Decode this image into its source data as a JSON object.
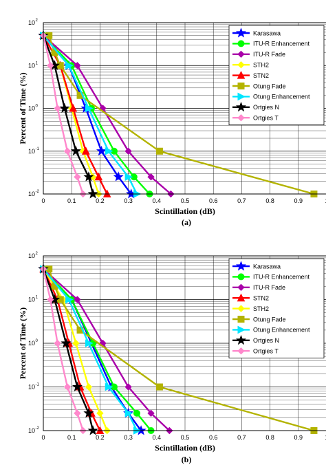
{
  "chart_data": [
    {
      "type": "line",
      "caption": "(a)",
      "xlabel": "Scintillation (dB)",
      "ylabel": "Percent of Time (%)",
      "xlim": [
        0,
        1
      ],
      "ylim": [
        0.01,
        100
      ],
      "yscale": "log",
      "grid": true,
      "legend_position": "top-right",
      "x_ticks": [
        "0",
        "0.1",
        "0.2",
        "0.3",
        "0.4",
        "0.5",
        "0.6",
        "0.7",
        "0.8",
        "0.9",
        "1"
      ],
      "y_ticks": [
        {
          "base": "10",
          "exp": "-2"
        },
        {
          "base": "10",
          "exp": "-1"
        },
        {
          "base": "10",
          "exp": "0"
        },
        {
          "base": "10",
          "exp": "1"
        },
        {
          "base": "10",
          "exp": "2"
        }
      ],
      "series": [
        {
          "name": "Karasawa",
          "color": "#0000ff",
          "marker": "star",
          "x": [
            0,
            0.09,
            0.15,
            0.205,
            0.265,
            0.31
          ],
          "y": [
            50,
            10,
            1,
            0.1,
            0.025,
            0.01
          ]
        },
        {
          "name": "ITU-R Enhancement",
          "color": "#00ff00",
          "marker": "circle",
          "x": [
            0,
            0.1,
            0.17,
            0.25,
            0.32,
            0.375
          ],
          "y": [
            50,
            10,
            1,
            0.1,
            0.025,
            0.01
          ]
        },
        {
          "name": "ITU-R Fade",
          "color": "#aa00aa",
          "marker": "diamond",
          "x": [
            0,
            0.12,
            0.21,
            0.3,
            0.38,
            0.45
          ],
          "y": [
            50,
            10,
            1,
            0.1,
            0.025,
            0.01
          ]
        },
        {
          "name": "STH2",
          "color": "#ffff00",
          "marker": "diamond",
          "x": [
            0,
            0.06,
            0.1,
            0.14,
            0.175,
            0.195
          ],
          "y": [
            50,
            10,
            1,
            0.1,
            0.025,
            0.01
          ]
        },
        {
          "name": "STN2",
          "color": "#ff0000",
          "marker": "triangle",
          "x": [
            0,
            0.06,
            0.105,
            0.15,
            0.195,
            0.225
          ],
          "y": [
            50,
            10,
            1,
            0.1,
            0.025,
            0.01
          ]
        },
        {
          "name": "Otung Fade",
          "color": "#b3b300",
          "marker": "square",
          "x": [
            0.02,
            0.04,
            0.06,
            0.13,
            0.41,
            0.955
          ],
          "y": [
            50,
            20,
            10,
            2,
            0.1,
            0.01
          ]
        },
        {
          "name": "Otung Enhancement",
          "color": "#00e5ff",
          "marker": "triangle-right",
          "x": [
            0,
            0.09,
            0.16,
            0.23,
            0.3,
            0.33
          ],
          "y": [
            50,
            10,
            1,
            0.1,
            0.025,
            0.01
          ]
        },
        {
          "name": "Ortgies N",
          "color": "#000000",
          "marker": "star",
          "x": [
            0,
            0.04,
            0.075,
            0.115,
            0.16,
            0.175
          ],
          "y": [
            50,
            10,
            1,
            0.1,
            0.025,
            0.01
          ]
        },
        {
          "name": "Ortgies T",
          "color": "#ff88cc",
          "marker": "diamond",
          "x": [
            0,
            0.025,
            0.05,
            0.085,
            0.12,
            0.14
          ],
          "y": [
            50,
            10,
            1,
            0.1,
            0.025,
            0.01
          ]
        }
      ]
    },
    {
      "type": "line",
      "caption": "(b)",
      "xlabel": "Scintillation (dB)",
      "ylabel": "Percent of Time (%)",
      "xlim": [
        0,
        1
      ],
      "ylim": [
        0.01,
        100
      ],
      "yscale": "log",
      "grid": true,
      "legend_position": "top-right",
      "x_ticks": [
        "0",
        "0.1",
        "0.2",
        "0.3",
        "0.4",
        "0.5",
        "0.6",
        "0.7",
        "0.8",
        "0.9",
        "1"
      ],
      "y_ticks": [
        {
          "base": "10",
          "exp": "-2"
        },
        {
          "base": "10",
          "exp": "-1"
        },
        {
          "base": "10",
          "exp": "0"
        },
        {
          "base": "10",
          "exp": "1"
        },
        {
          "base": "10",
          "exp": "2"
        }
      ],
      "series": [
        {
          "name": "Karasawa",
          "color": "#0000ff",
          "marker": "star",
          "x": [
            0,
            0.1,
            0.17,
            0.24,
            0.3,
            0.345
          ],
          "y": [
            50,
            10,
            1,
            0.1,
            0.025,
            0.01
          ]
        },
        {
          "name": "ITU-R Enhancement",
          "color": "#00ff00",
          "marker": "circle",
          "x": [
            0,
            0.1,
            0.175,
            0.25,
            0.33,
            0.38
          ],
          "y": [
            50,
            10,
            1,
            0.1,
            0.025,
            0.01
          ]
        },
        {
          "name": "ITU-R Fade",
          "color": "#aa00aa",
          "marker": "diamond",
          "x": [
            0,
            0.12,
            0.21,
            0.3,
            0.38,
            0.445
          ],
          "y": [
            50,
            10,
            1,
            0.1,
            0.025,
            0.01
          ]
        },
        {
          "name": "STN2",
          "color": "#ff0000",
          "marker": "triangle",
          "x": [
            0,
            0.05,
            0.09,
            0.13,
            0.17,
            0.2
          ],
          "y": [
            50,
            10,
            1,
            0.1,
            0.025,
            0.01
          ]
        },
        {
          "name": "STH2",
          "color": "#ffff00",
          "marker": "diamond",
          "x": [
            0,
            0.07,
            0.115,
            0.16,
            0.2,
            0.225
          ],
          "y": [
            50,
            10,
            1,
            0.1,
            0.025,
            0.01
          ]
        },
        {
          "name": "Otung Fade",
          "color": "#b3b300",
          "marker": "square",
          "x": [
            0.02,
            0.04,
            0.06,
            0.13,
            0.41,
            0.955
          ],
          "y": [
            50,
            20,
            10,
            2,
            0.1,
            0.01
          ]
        },
        {
          "name": "Otung Enhancement",
          "color": "#00e5ff",
          "marker": "triangle-right",
          "x": [
            0,
            0.09,
            0.16,
            0.23,
            0.3,
            0.33
          ],
          "y": [
            50,
            10,
            1,
            0.1,
            0.025,
            0.01
          ]
        },
        {
          "name": "Ortgies N",
          "color": "#000000",
          "marker": "star",
          "x": [
            0,
            0.04,
            0.08,
            0.12,
            0.16,
            0.175
          ],
          "y": [
            50,
            10,
            1,
            0.1,
            0.025,
            0.01
          ]
        },
        {
          "name": "Ortgies T",
          "color": "#ff88cc",
          "marker": "diamond",
          "x": [
            0,
            0.025,
            0.05,
            0.085,
            0.12,
            0.14
          ],
          "y": [
            50,
            10,
            1,
            0.1,
            0.025,
            0.01
          ]
        }
      ]
    }
  ]
}
